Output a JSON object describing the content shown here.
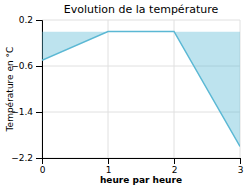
{
  "chart_data": {
    "type": "line",
    "title": "Evolution de la température",
    "ylabel": "Température en °C",
    "xlabel": "heure par heure",
    "x": [
      0,
      1,
      2,
      3
    ],
    "values": [
      -0.5,
      0.0,
      0.0,
      -2.0
    ],
    "color": "#5bb8d4",
    "xlim": [
      0,
      3
    ],
    "ylim": [
      -2.2,
      0.2
    ],
    "xticks": [
      0,
      1,
      2,
      3
    ],
    "yticks": [
      -2.2,
      -1.4,
      -0.6,
      0.2
    ],
    "grid": true
  }
}
